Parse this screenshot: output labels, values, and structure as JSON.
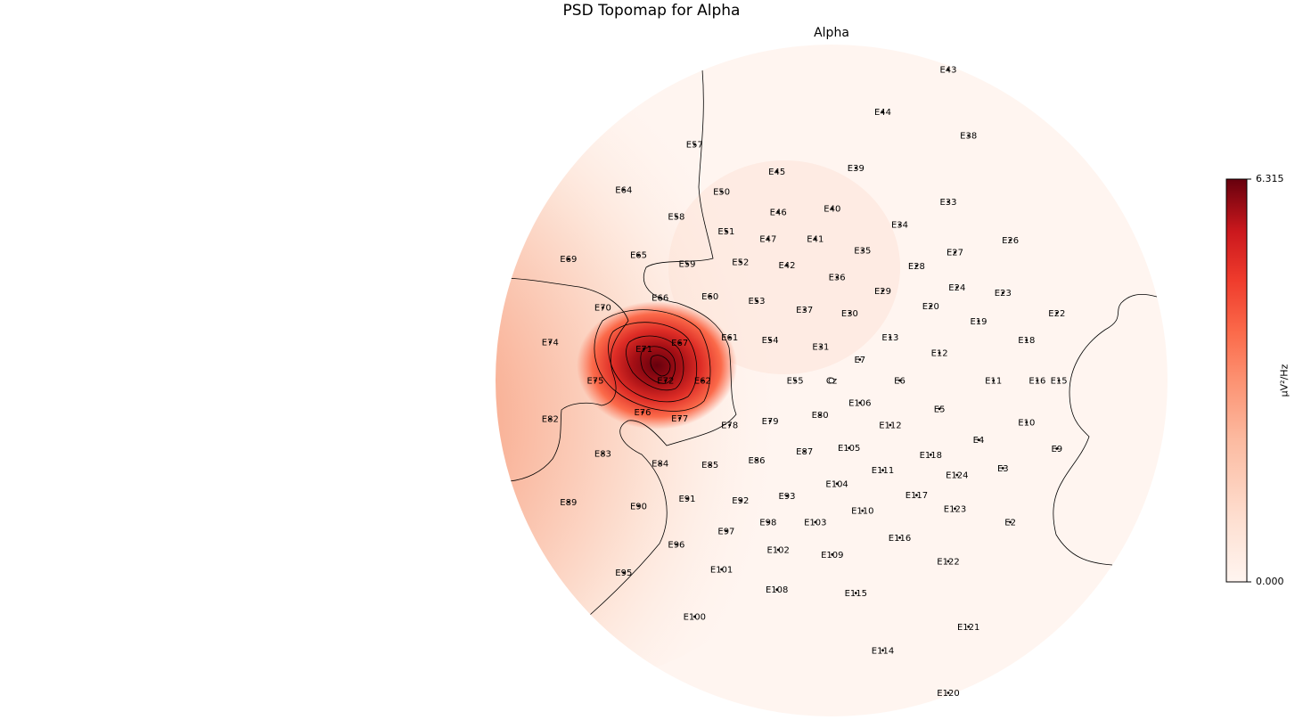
{
  "chart_data": {
    "type": "heatmap",
    "title": "PSD Topomap for Alpha",
    "subtitle": "Alpha",
    "colorbar": {
      "label": "μV²/Hz",
      "min": 0.0,
      "max": 6.315,
      "tick_labels": [
        "6.315",
        "0.000"
      ],
      "colormap": "Reds"
    },
    "colors": {
      "low": "#fff5f0",
      "high": "#67000d"
    },
    "sensors": [
      {
        "name": "E43",
        "x": 1.73,
        "y": 4.61
      },
      {
        "name": "E44",
        "x": 0.76,
        "y": 3.98
      },
      {
        "name": "E38",
        "x": 2.03,
        "y": 3.63
      },
      {
        "name": "E57",
        "x": -2.03,
        "y": 3.5
      },
      {
        "name": "E39",
        "x": 0.36,
        "y": 3.15
      },
      {
        "name": "E45",
        "x": -0.81,
        "y": 3.1
      },
      {
        "name": "E64",
        "x": -3.08,
        "y": 2.83
      },
      {
        "name": "E50",
        "x": -1.63,
        "y": 2.8
      },
      {
        "name": "E33",
        "x": 1.73,
        "y": 2.65
      },
      {
        "name": "E40",
        "x": 0.01,
        "y": 2.55
      },
      {
        "name": "E46",
        "x": -0.79,
        "y": 2.5
      },
      {
        "name": "E58",
        "x": -2.3,
        "y": 2.43
      },
      {
        "name": "E34",
        "x": 1.01,
        "y": 2.31
      },
      {
        "name": "E51",
        "x": -1.56,
        "y": 2.21
      },
      {
        "name": "E26",
        "x": 2.65,
        "y": 2.08
      },
      {
        "name": "E47",
        "x": -0.94,
        "y": 2.1
      },
      {
        "name": "E41",
        "x": -0.24,
        "y": 2.1
      },
      {
        "name": "E35",
        "x": 0.46,
        "y": 1.93
      },
      {
        "name": "E27",
        "x": 1.83,
        "y": 1.9
      },
      {
        "name": "E69",
        "x": -3.9,
        "y": 1.8
      },
      {
        "name": "E65",
        "x": -2.86,
        "y": 1.86
      },
      {
        "name": "E59",
        "x": -2.14,
        "y": 1.73
      },
      {
        "name": "E52",
        "x": -1.35,
        "y": 1.76
      },
      {
        "name": "E42",
        "x": -0.66,
        "y": 1.71
      },
      {
        "name": "E28",
        "x": 1.26,
        "y": 1.7
      },
      {
        "name": "E36",
        "x": 0.08,
        "y": 1.53
      },
      {
        "name": "E24",
        "x": 1.86,
        "y": 1.38
      },
      {
        "name": "E29",
        "x": 0.76,
        "y": 1.33
      },
      {
        "name": "E23",
        "x": 2.54,
        "y": 1.3
      },
      {
        "name": "E66",
        "x": -2.54,
        "y": 1.23
      },
      {
        "name": "E60",
        "x": -1.8,
        "y": 1.25
      },
      {
        "name": "E53",
        "x": -1.11,
        "y": 1.18
      },
      {
        "name": "E20",
        "x": 1.47,
        "y": 1.1
      },
      {
        "name": "E37",
        "x": -0.4,
        "y": 1.05
      },
      {
        "name": "E30",
        "x": 0.27,
        "y": 1.0
      },
      {
        "name": "E70",
        "x": -3.39,
        "y": 1.08
      },
      {
        "name": "E22",
        "x": 3.34,
        "y": 1.0
      },
      {
        "name": "E19",
        "x": 2.18,
        "y": 0.88
      },
      {
        "name": "E13",
        "x": 0.87,
        "y": 0.64
      },
      {
        "name": "E61",
        "x": -1.51,
        "y": 0.64
      },
      {
        "name": "E54",
        "x": -0.91,
        "y": 0.6
      },
      {
        "name": "E18",
        "x": 2.89,
        "y": 0.6
      },
      {
        "name": "E74",
        "x": -4.17,
        "y": 0.57
      },
      {
        "name": "E67",
        "x": -2.25,
        "y": 0.56
      },
      {
        "name": "E71",
        "x": -2.78,
        "y": 0.47
      },
      {
        "name": "E31",
        "x": -0.16,
        "y": 0.5
      },
      {
        "name": "E12",
        "x": 1.6,
        "y": 0.41
      },
      {
        "name": "E7",
        "x": 0.42,
        "y": 0.31
      },
      {
        "name": "Cz",
        "x": 0.0,
        "y": 0.0
      },
      {
        "name": "E75",
        "x": -3.5,
        "y": 0.0
      },
      {
        "name": "E72",
        "x": -2.46,
        "y": 0.0
      },
      {
        "name": "E62",
        "x": -1.91,
        "y": 0.0
      },
      {
        "name": "E55",
        "x": -0.54,
        "y": 0.0
      },
      {
        "name": "E6",
        "x": 1.01,
        "y": 0.0
      },
      {
        "name": "E11",
        "x": 2.4,
        "y": 0.0
      },
      {
        "name": "E16",
        "x": 3.05,
        "y": 0.0
      },
      {
        "name": "E15",
        "x": 3.37,
        "y": 0.0
      },
      {
        "name": "E106",
        "x": 0.42,
        "y": -0.33
      },
      {
        "name": "E5",
        "x": 1.6,
        "y": -0.42
      },
      {
        "name": "E76",
        "x": -2.8,
        "y": -0.47
      },
      {
        "name": "E77",
        "x": -2.25,
        "y": -0.56
      },
      {
        "name": "E80",
        "x": -0.17,
        "y": -0.51
      },
      {
        "name": "E79",
        "x": -0.91,
        "y": -0.6
      },
      {
        "name": "E82",
        "x": -4.17,
        "y": -0.57
      },
      {
        "name": "E112",
        "x": 0.87,
        "y": -0.66
      },
      {
        "name": "E78",
        "x": -1.51,
        "y": -0.66
      },
      {
        "name": "E10",
        "x": 2.89,
        "y": -0.62
      },
      {
        "name": "E4",
        "x": 2.18,
        "y": -0.88
      },
      {
        "name": "E105",
        "x": 0.26,
        "y": -1.0
      },
      {
        "name": "E87",
        "x": -0.4,
        "y": -1.05
      },
      {
        "name": "E9",
        "x": 3.34,
        "y": -1.01
      },
      {
        "name": "E83",
        "x": -3.39,
        "y": -1.08
      },
      {
        "name": "E118",
        "x": 1.47,
        "y": -1.1
      },
      {
        "name": "E86",
        "x": -1.11,
        "y": -1.18
      },
      {
        "name": "E84",
        "x": -2.54,
        "y": -1.23
      },
      {
        "name": "E85",
        "x": -1.8,
        "y": -1.25
      },
      {
        "name": "E3",
        "x": 2.54,
        "y": -1.3
      },
      {
        "name": "E111",
        "x": 0.76,
        "y": -1.33
      },
      {
        "name": "E124",
        "x": 1.86,
        "y": -1.4
      },
      {
        "name": "E104",
        "x": 0.08,
        "y": -1.53
      },
      {
        "name": "E117",
        "x": 1.26,
        "y": -1.7
      },
      {
        "name": "E93",
        "x": -0.66,
        "y": -1.71
      },
      {
        "name": "E91",
        "x": -2.14,
        "y": -1.75
      },
      {
        "name": "E92",
        "x": -1.35,
        "y": -1.78
      },
      {
        "name": "E89",
        "x": -3.9,
        "y": -1.8
      },
      {
        "name": "E90",
        "x": -2.86,
        "y": -1.86
      },
      {
        "name": "E123",
        "x": 1.83,
        "y": -1.9
      },
      {
        "name": "E110",
        "x": 0.46,
        "y": -1.93
      },
      {
        "name": "E98",
        "x": -0.94,
        "y": -2.1
      },
      {
        "name": "E103",
        "x": -0.24,
        "y": -2.1
      },
      {
        "name": "E2",
        "x": 2.65,
        "y": -2.1
      },
      {
        "name": "E97",
        "x": -1.56,
        "y": -2.23
      },
      {
        "name": "E116",
        "x": 1.01,
        "y": -2.33
      },
      {
        "name": "E96",
        "x": -2.3,
        "y": -2.43
      },
      {
        "name": "E102",
        "x": -0.79,
        "y": -2.51
      },
      {
        "name": "E109",
        "x": 0.01,
        "y": -2.58
      },
      {
        "name": "E122",
        "x": 1.73,
        "y": -2.68
      },
      {
        "name": "E95",
        "x": -3.08,
        "y": -2.85
      },
      {
        "name": "E101",
        "x": -1.63,
        "y": -2.8
      },
      {
        "name": "E108",
        "x": -0.81,
        "y": -3.1
      },
      {
        "name": "E115",
        "x": 0.36,
        "y": -3.15
      },
      {
        "name": "E100",
        "x": -2.03,
        "y": -3.5
      },
      {
        "name": "E121",
        "x": 2.03,
        "y": -3.65
      },
      {
        "name": "E114",
        "x": 0.76,
        "y": -4.0
      },
      {
        "name": "E120",
        "x": 1.73,
        "y": -4.63
      }
    ],
    "peak_location": {
      "x": -2.46,
      "y": 0.05
    }
  }
}
